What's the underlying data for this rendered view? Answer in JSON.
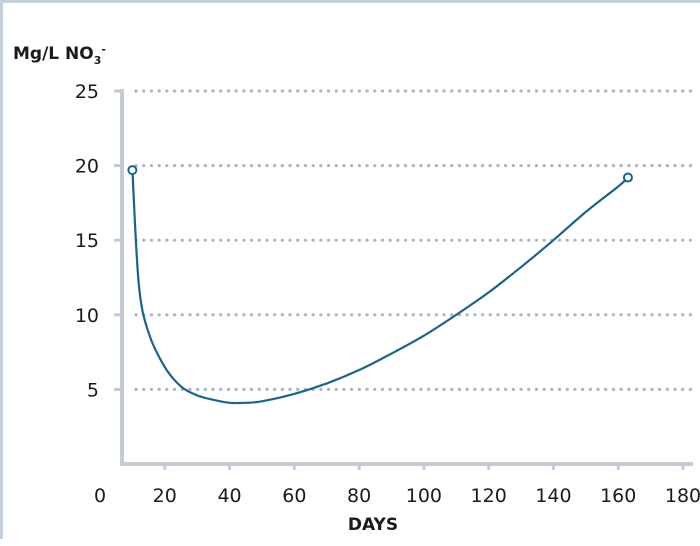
{
  "chart_data": {
    "type": "line",
    "title": "",
    "xlabel": "DAYS",
    "ylabel": "Mg/L NO",
    "ylabel_sub": "3",
    "ylabel_sup": "-",
    "xlim": [
      0,
      180
    ],
    "ylim": [
      0,
      25
    ],
    "x_ticks": [
      0,
      20,
      40,
      60,
      80,
      100,
      120,
      140,
      160,
      180
    ],
    "y_ticks": [
      5,
      10,
      15,
      20,
      25
    ],
    "grid": "horizontal-dotted",
    "legend": "none",
    "series": [
      {
        "x": [
          10,
          12,
          15,
          20,
          25,
          30,
          35,
          40,
          45,
          50,
          60,
          70,
          80,
          90,
          100,
          110,
          120,
          130,
          140,
          150,
          160,
          163
        ],
        "y": [
          19.7,
          12.0,
          8.8,
          6.5,
          5.2,
          4.6,
          4.3,
          4.1,
          4.1,
          4.2,
          4.7,
          5.4,
          6.3,
          7.4,
          8.6,
          10.0,
          11.5,
          13.2,
          15.0,
          16.9,
          18.6,
          19.2
        ]
      }
    ],
    "endpoint_markers": [
      {
        "x": 10,
        "y": 19.7
      },
      {
        "x": 163,
        "y": 19.2
      }
    ],
    "colors": {
      "line": "#1b6487",
      "axis": "#c3ccd6",
      "grid": "#a9b7c6",
      "tick_marks": "#c3ccd6",
      "text": "#1b1b1b"
    }
  }
}
